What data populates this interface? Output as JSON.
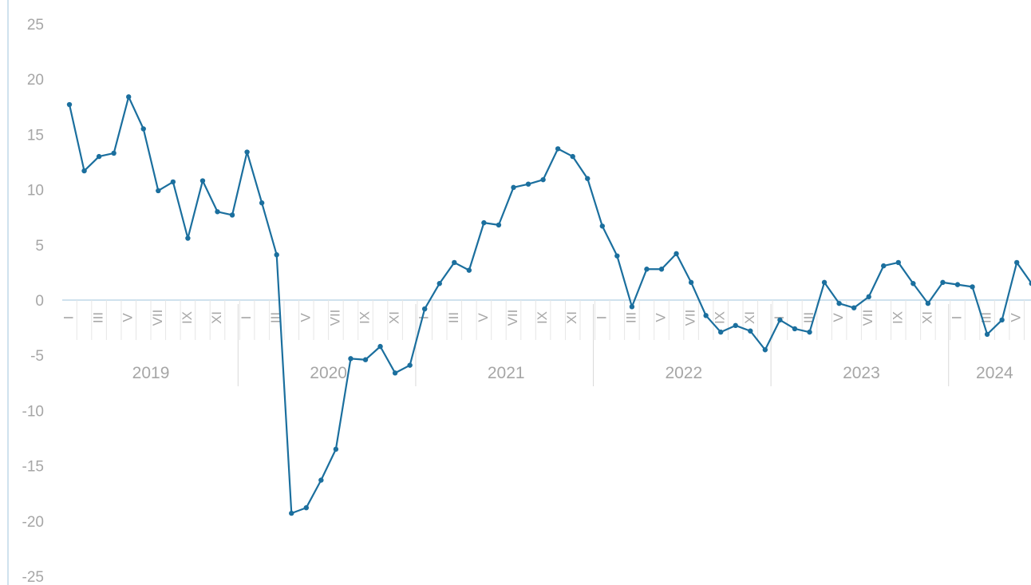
{
  "chart_data": {
    "type": "line",
    "title": "",
    "xlabel": "",
    "ylabel": "",
    "ylim": [
      -25,
      25
    ],
    "yticks": [
      "25",
      "20",
      "15",
      "10",
      "5",
      "0",
      "-5",
      "-10",
      "-15",
      "-20",
      "-25"
    ],
    "grid": false,
    "legend": "none",
    "colors": {
      "line": "#1b6f9e",
      "axis": "#bfd9e8",
      "tick_text": "#a6a6a6"
    },
    "month_ticks": [
      "I",
      "III",
      "V",
      "VII",
      "IX",
      "XI"
    ],
    "years": [
      {
        "label": "2019",
        "months": 12
      },
      {
        "label": "2020",
        "months": 12
      },
      {
        "label": "2021",
        "months": 12
      },
      {
        "label": "2022",
        "months": 12
      },
      {
        "label": "2023",
        "months": 12
      },
      {
        "label": "2024",
        "months": 6
      }
    ],
    "series": [
      {
        "values": [
          17.7,
          11.7,
          13.0,
          13.3,
          18.4,
          15.5,
          9.9,
          10.7,
          5.6,
          10.8,
          8.0,
          7.7,
          13.4,
          8.8,
          4.1,
          -19.3,
          -18.8,
          -16.3,
          -13.5,
          -5.3,
          -5.4,
          -4.2,
          -6.6,
          -5.9,
          -0.8,
          1.5,
          3.4,
          2.7,
          7.0,
          6.8,
          10.2,
          10.5,
          10.9,
          13.7,
          13.0,
          11.0,
          6.7,
          4.0,
          -0.6,
          2.8,
          2.8,
          4.2,
          1.6,
          -1.4,
          -2.9,
          -2.3,
          -2.8,
          -4.5,
          -1.8,
          -2.6,
          -2.9,
          1.6,
          -0.3,
          -0.7,
          0.3,
          3.1,
          3.4,
          1.5,
          -0.3,
          1.6,
          1.4,
          1.2,
          -3.1,
          -1.8,
          3.4,
          1.5
        ]
      }
    ]
  }
}
